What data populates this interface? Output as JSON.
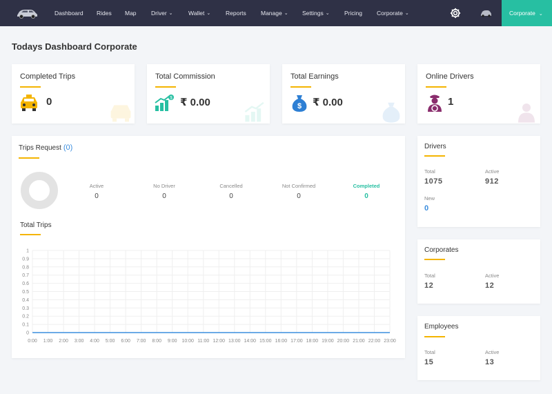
{
  "nav": {
    "items": [
      {
        "label": "Dashboard",
        "dropdown": false
      },
      {
        "label": "Rides",
        "dropdown": false
      },
      {
        "label": "Map",
        "dropdown": false
      },
      {
        "label": "Driver",
        "dropdown": true
      },
      {
        "label": "Wallet",
        "dropdown": true
      },
      {
        "label": "Reports",
        "dropdown": false
      },
      {
        "label": "Manage",
        "dropdown": true
      },
      {
        "label": "Settings",
        "dropdown": true
      },
      {
        "label": "Pricing",
        "dropdown": false
      },
      {
        "label": "Corporate",
        "dropdown": true
      }
    ],
    "account_label": "Corporate"
  },
  "page_title": "Todays Dashboard Corporate",
  "stats": [
    {
      "title": "Completed Trips",
      "value": "0",
      "icon": "taxi-icon"
    },
    {
      "title": "Total Commission",
      "value": "₹ 0.00",
      "icon": "growth-chart-icon"
    },
    {
      "title": "Total Earnings",
      "value": "₹ 0.00",
      "icon": "money-bag-icon"
    },
    {
      "title": "Online Drivers",
      "value": "1",
      "icon": "driver-icon"
    }
  ],
  "trips_request": {
    "title": "Trips Request",
    "count": "(0)",
    "statuses": [
      {
        "label": "Active",
        "value": "0"
      },
      {
        "label": "No Driver",
        "value": "0"
      },
      {
        "label": "Cancelled",
        "value": "0"
      },
      {
        "label": "Not Confirmed",
        "value": "0"
      },
      {
        "label": "Completed",
        "value": "0"
      }
    ]
  },
  "total_trips": {
    "title": "Total Trips"
  },
  "chart_data": {
    "type": "line",
    "title": "",
    "xlabel": "",
    "ylabel": "",
    "x": [
      "0:00",
      "1:00",
      "2:00",
      "3:00",
      "4:00",
      "5:00",
      "6:00",
      "7:00",
      "8:00",
      "9:00",
      "10:00",
      "11:00",
      "12:00",
      "13:00",
      "14:00",
      "15:00",
      "16:00",
      "17:00",
      "18:00",
      "19:00",
      "20:00",
      "21:00",
      "22:00",
      "23:00"
    ],
    "series": [
      {
        "values": [
          0,
          0,
          0,
          0,
          0,
          0,
          0,
          0,
          0,
          0,
          0,
          0,
          0,
          0,
          0,
          0,
          0,
          0,
          0,
          0,
          0,
          0,
          0,
          0
        ]
      }
    ],
    "yticks": [
      "0",
      "0.1",
      "0.2",
      "0.3",
      "0.4",
      "0.5",
      "0.6",
      "0.7",
      "0.8",
      "0.9",
      "1"
    ],
    "ylim": [
      0,
      1
    ],
    "grid": true,
    "line_color": "#3a8dde"
  },
  "drivers": {
    "title": "Drivers",
    "total_label": "Total",
    "total": "1075",
    "active_label": "Active",
    "active": "912",
    "new_label": "New",
    "new": "0"
  },
  "corporates": {
    "title": "Corporates",
    "total_label": "Total",
    "total": "12",
    "active_label": "Active",
    "active": "12"
  },
  "employees": {
    "title": "Employees",
    "total_label": "Total",
    "total": "15",
    "active_label": "Active",
    "active": "13"
  },
  "colors": {
    "nav_bg": "#2f3146",
    "accent": "#27bfa2",
    "underline": "#f4b400",
    "link": "#3a8dde"
  }
}
